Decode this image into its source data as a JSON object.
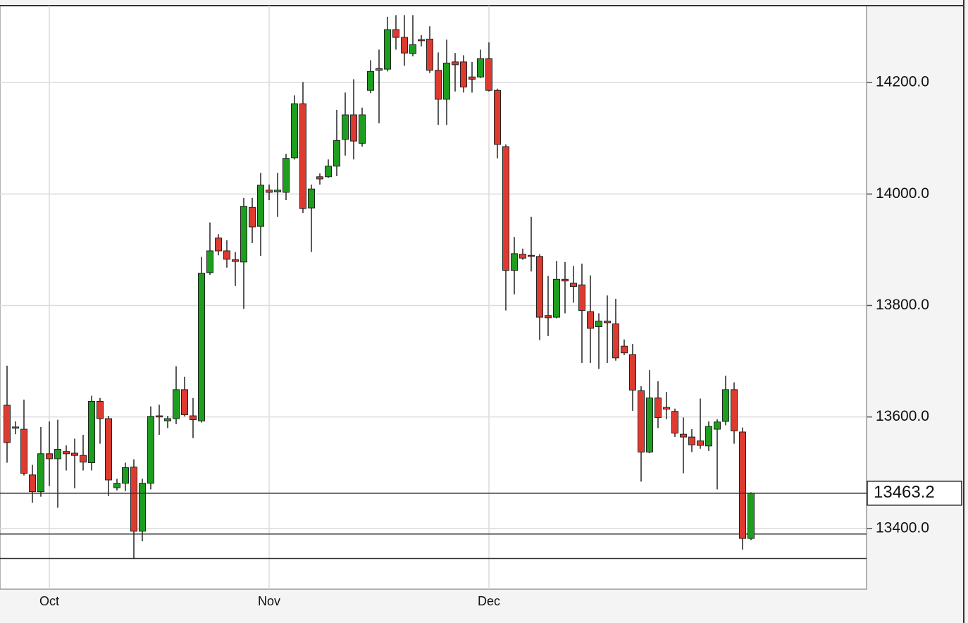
{
  "chart_data": {
    "type": "candlestick",
    "categories": [
      null,
      null,
      null,
      null,
      null,
      "Oct",
      null,
      null,
      null,
      null,
      null,
      null,
      null,
      null,
      null,
      null,
      null,
      null,
      null,
      null,
      null,
      null,
      null,
      null,
      null,
      null,
      null,
      null,
      null,
      null,
      null,
      "Nov",
      null,
      null,
      null,
      null,
      null,
      null,
      null,
      null,
      null,
      null,
      null,
      null,
      null,
      null,
      null,
      null,
      null,
      null,
      null,
      null,
      null,
      null,
      null,
      null,
      null,
      "Dec",
      null,
      null,
      null,
      null,
      null,
      null,
      null,
      null,
      null,
      null,
      null,
      null,
      null,
      null,
      null,
      null,
      null,
      null,
      null,
      null,
      null,
      null,
      null,
      null,
      null,
      null,
      null,
      null,
      null,
      null,
      null
    ],
    "open": [
      13621,
      13582,
      13578,
      13496,
      13466,
      13534,
      13525,
      13538,
      13535,
      13531,
      13518,
      13628,
      13597,
      13473,
      13481,
      13510,
      13395,
      13481,
      13602,
      13593,
      13597,
      13649,
      13602,
      13593,
      13859,
      13921,
      13898,
      13882,
      13878,
      13976,
      13942,
      14007,
      14004,
      14003,
      14065,
      14162,
      13975,
      14031,
      14031,
      14050,
      14098,
      14142,
      14091,
      14186,
      14225,
      14224,
      14295,
      14281,
      14252,
      14277,
      14278,
      14222,
      14170,
      14237,
      14237,
      14210,
      14210,
      14243,
      14186,
      14085,
      13863,
      13892,
      13890,
      13888,
      13782,
      13779,
      13847,
      13840,
      13837,
      13789,
      13762,
      13772,
      13767,
      13727,
      13712,
      13647,
      13537,
      13634,
      13617,
      13610,
      13569,
      13564,
      13557,
      13548,
      13578,
      13592,
      13649,
      13573,
      13382
    ],
    "high": [
      13692,
      13592,
      13631,
      13514,
      13582,
      13592,
      13595,
      13549,
      13561,
      13568,
      13638,
      13634,
      13602,
      13489,
      13518,
      13524,
      13489,
      13619,
      13622,
      13602,
      13691,
      13672,
      13634,
      13887,
      13949,
      13928,
      13917,
      13896,
      13993,
      13993,
      14038,
      14017,
      14038,
      14072,
      14177,
      14201,
      14017,
      14037,
      14062,
      14151,
      14182,
      14206,
      14155,
      14240,
      14259,
      14318,
      14321,
      14321,
      14321,
      14285,
      14301,
      14254,
      14277,
      14253,
      14249,
      14237,
      14259,
      14272,
      14189,
      14089,
      13923,
      13902,
      13959,
      13892,
      13853,
      13880,
      13878,
      13871,
      13875,
      13854,
      13786,
      13818,
      13812,
      13739,
      13731,
      13655,
      13684,
      13664,
      13645,
      13615,
      13599,
      13578,
      13633,
      13592,
      13596,
      13674,
      13662,
      13581,
      13465
    ],
    "low": [
      13518,
      13569,
      13495,
      13446,
      13457,
      13476,
      13437,
      13504,
      13472,
      13504,
      13504,
      13552,
      13458,
      13468,
      13467,
      13346,
      13377,
      13470,
      13568,
      13580,
      13587,
      13601,
      13562,
      13590,
      13855,
      13890,
      13868,
      13835,
      13794,
      13912,
      13889,
      13989,
      13959,
      13989,
      14062,
      13966,
      13896,
      14017,
      14029,
      14032,
      14069,
      14062,
      14085,
      14181,
      14127,
      14220,
      14259,
      14230,
      14247,
      14265,
      14217,
      14124,
      14124,
      14184,
      14182,
      14182,
      14208,
      14184,
      14064,
      13791,
      13820,
      13882,
      13861,
      13738,
      13745,
      13777,
      13786,
      13805,
      13697,
      13697,
      13686,
      13697,
      13701,
      13711,
      13611,
      13484,
      13535,
      13580,
      13596,
      13564,
      13499,
      13537,
      13543,
      13539,
      13470,
      13585,
      13552,
      13362,
      13379
    ],
    "close": [
      13554,
      13580,
      13499,
      13466,
      13534,
      13525,
      13542,
      13534,
      13531,
      13519,
      13628,
      13597,
      13487,
      13481,
      13509,
      13395,
      13481,
      13601,
      13600,
      13597,
      13649,
      13604,
      13595,
      13858,
      13898,
      13898,
      13883,
      13879,
      13978,
      13941,
      14016,
      14003,
      14007,
      14064,
      14162,
      13974,
      14009,
      14027,
      14050,
      14096,
      14142,
      14095,
      14142,
      14220,
      14222,
      14295,
      14281,
      14253,
      14268,
      14275,
      14222,
      14170,
      14235,
      14232,
      14192,
      14206,
      14243,
      14186,
      14089,
      13863,
      13893,
      13885,
      13888,
      13779,
      13778,
      13847,
      13844,
      13834,
      13791,
      13759,
      13772,
      13769,
      13706,
      13715,
      13648,
      13537,
      13634,
      13599,
      13614,
      13571,
      13564,
      13550,
      13549,
      13583,
      13591,
      13649,
      13575,
      13382,
      13463.2
    ],
    "up_color": "#1e9e1e",
    "down_color": "#dd3b30",
    "levels": [
      13390,
      13346
    ],
    "ylim": [
      13291,
      14338
    ],
    "yticks": [
      {
        "value": 13400,
        "label": "13400.0"
      },
      {
        "value": 13600,
        "label": "13600.0"
      },
      {
        "value": 13800,
        "label": "13800.0"
      },
      {
        "value": 14000,
        "label": "14000.0"
      },
      {
        "value": 14200,
        "label": "14200.0"
      }
    ],
    "grid": true
  }
}
